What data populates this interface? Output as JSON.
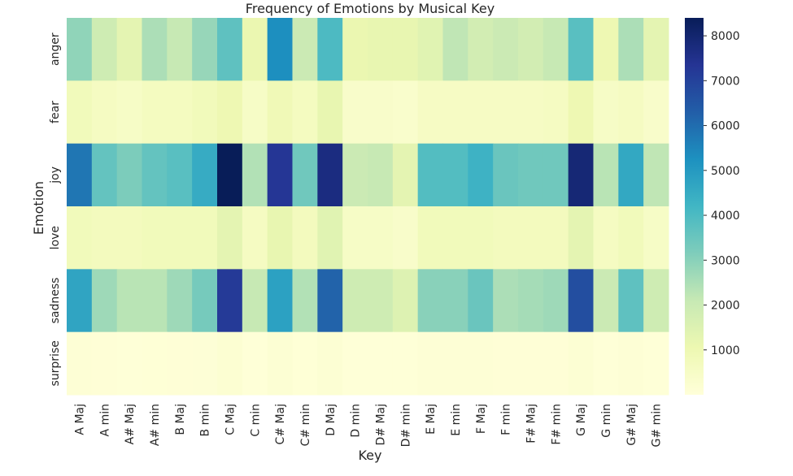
{
  "chart_data": {
    "type": "heatmap",
    "title": "Frequency of Emotions by Musical Key",
    "xlabel": "Key",
    "ylabel": "Emotion",
    "x": [
      "A Maj",
      "A min",
      "A# Maj",
      "A# min",
      "B Maj",
      "B min",
      "C Maj",
      "C min",
      "C# Maj",
      "C# min",
      "D Maj",
      "D min",
      "D# Maj",
      "D# min",
      "E Maj",
      "E min",
      "F Maj",
      "F min",
      "F# Maj",
      "F# min",
      "G Maj",
      "G min",
      "G# Maj",
      "G# min"
    ],
    "y": [
      "anger",
      "fear",
      "joy",
      "love",
      "sadness",
      "surprise"
    ],
    "values": [
      [
        2900,
        1900,
        1300,
        2500,
        2100,
        2800,
        3700,
        1100,
        5300,
        2000,
        4000,
        1100,
        1200,
        1200,
        1400,
        2200,
        1800,
        2000,
        1800,
        2100,
        3800,
        1000,
        2500,
        1300
      ],
      [
        800,
        600,
        500,
        650,
        650,
        800,
        1000,
        500,
        900,
        650,
        1200,
        400,
        400,
        350,
        550,
        550,
        550,
        550,
        550,
        600,
        1000,
        500,
        600,
        400
      ],
      [
        5800,
        3600,
        3200,
        3600,
        3800,
        4500,
        8400,
        2400,
        7300,
        3400,
        7700,
        2000,
        2100,
        1300,
        3900,
        3900,
        4300,
        3500,
        3400,
        3400,
        7900,
        2300,
        4600,
        2200
      ],
      [
        800,
        700,
        700,
        800,
        800,
        800,
        1300,
        600,
        1200,
        700,
        1400,
        500,
        500,
        400,
        800,
        800,
        800,
        700,
        700,
        700,
        1300,
        600,
        800,
        500
      ],
      [
        4700,
        2700,
        2300,
        2300,
        2700,
        3300,
        7200,
        2100,
        4800,
        2400,
        6200,
        1900,
        1900,
        1500,
        3000,
        3000,
        3500,
        2500,
        2600,
        2700,
        6700,
        2000,
        3700,
        1900
      ],
      [
        100,
        80,
        60,
        70,
        80,
        90,
        180,
        60,
        150,
        70,
        170,
        50,
        50,
        40,
        100,
        100,
        110,
        80,
        80,
        80,
        170,
        60,
        110,
        60
      ]
    ],
    "colorbar": {
      "min": 0,
      "max": 8400,
      "ticks": [
        1000,
        2000,
        3000,
        4000,
        5000,
        6000,
        7000,
        8000
      ],
      "colormap": "YlGnBu"
    },
    "legend": "right"
  }
}
